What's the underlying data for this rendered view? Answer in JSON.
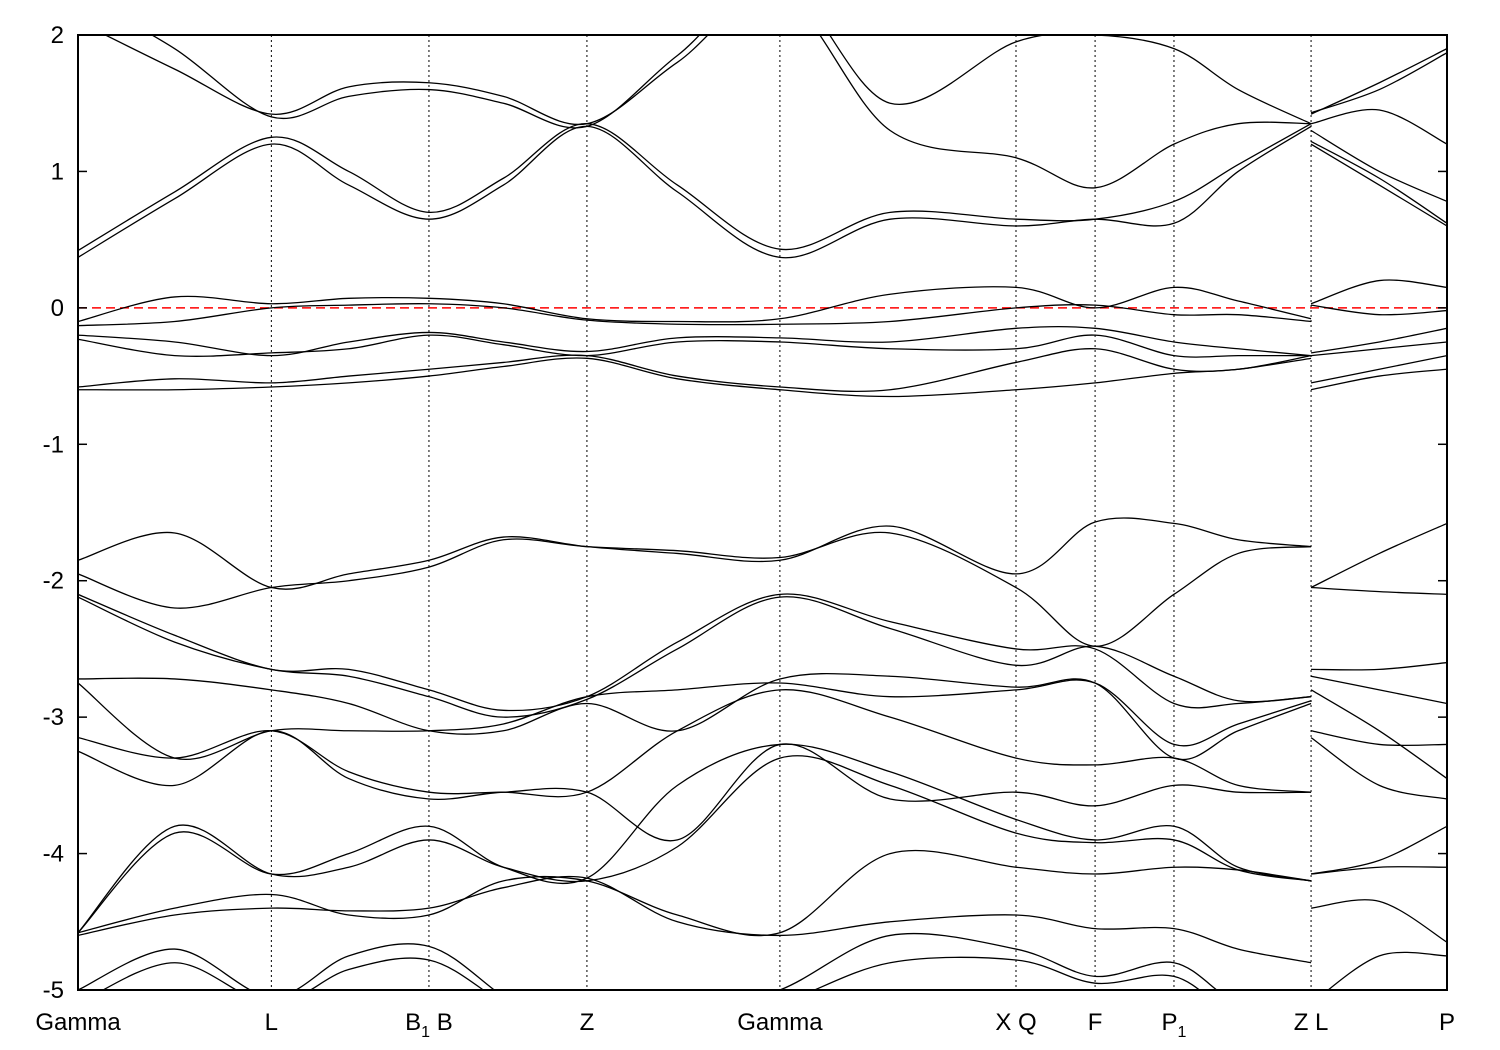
{
  "chart_data": {
    "type": "line",
    "title": "",
    "xlabel": "",
    "ylabel": "",
    "ylim": [
      -5,
      2
    ],
    "xlim": [
      0,
      7.08
    ],
    "yticks": [
      2,
      1,
      0,
      -1,
      -2,
      -3,
      -4,
      -5
    ],
    "xticks": [
      {
        "x": 0,
        "text": "Gamma",
        "sub": "",
        "suffix": ""
      },
      {
        "x": 1.0,
        "text": "L",
        "sub": "",
        "suffix": ""
      },
      {
        "x": 1.815,
        "text": "B",
        "sub": "1",
        "suffix": " B"
      },
      {
        "x": 2.632,
        "text": "Z",
        "sub": "",
        "suffix": ""
      },
      {
        "x": 3.63,
        "text": "Gamma",
        "sub": "",
        "suffix": ""
      },
      {
        "x": 4.851,
        "text": "X Q",
        "sub": "",
        "suffix": ""
      },
      {
        "x": 5.26,
        "text": "F",
        "sub": "",
        "suffix": ""
      },
      {
        "x": 5.668,
        "text": "P",
        "sub": "1",
        "suffix": ""
      },
      {
        "x": 6.377,
        "text": "Z L",
        "sub": "",
        "suffix": ""
      },
      {
        "x": 7.08,
        "text": "P",
        "sub": "",
        "suffix": ""
      }
    ],
    "fermi_level": 0,
    "colors": {
      "bands": "#000000",
      "fermi": "#ff0000",
      "grid": "#000000"
    },
    "segments": [
      {
        "x": [
          0,
          0.5,
          1.0,
          1.4,
          1.815,
          2.2,
          2.632,
          3.1,
          3.63,
          4.2,
          4.851,
          5.26,
          5.668,
          6.0,
          6.377
        ],
        "bands": [
          [
            0.37,
            0.8,
            1.2,
            0.9,
            0.65,
            0.9,
            1.33,
            0.85,
            0.37,
            0.65,
            0.6,
            0.65,
            0.62,
            1.0,
            1.33
          ],
          [
            0.42,
            0.85,
            1.25,
            1.0,
            0.7,
            0.95,
            1.35,
            0.9,
            0.43,
            0.7,
            0.65,
            0.65,
            0.78,
            1.05,
            1.35
          ],
          [
            2.1,
            1.75,
            1.42,
            1.62,
            1.65,
            1.55,
            1.35,
            1.8,
            2.3,
            1.3,
            1.1,
            0.88,
            1.2,
            1.35,
            1.35
          ],
          [
            2.3,
            1.9,
            1.4,
            1.55,
            1.6,
            1.5,
            1.33,
            1.85,
            2.4,
            1.5,
            1.95,
            2.0,
            1.9,
            1.6,
            1.35
          ],
          [
            -0.1,
            0.08,
            0.03,
            0.07,
            0.07,
            0.03,
            -0.08,
            -0.1,
            -0.08,
            0.1,
            0.15,
            0.0,
            0.15,
            0.05,
            -0.08
          ],
          [
            -0.13,
            -0.1,
            0.0,
            0.02,
            0.03,
            0.0,
            -0.09,
            -0.12,
            -0.12,
            -0.1,
            0.0,
            0.02,
            -0.05,
            -0.05,
            -0.1
          ],
          [
            -0.2,
            -0.25,
            -0.35,
            -0.25,
            -0.18,
            -0.25,
            -0.32,
            -0.22,
            -0.22,
            -0.25,
            -0.15,
            -0.15,
            -0.25,
            -0.3,
            -0.35
          ],
          [
            -0.23,
            -0.35,
            -0.33,
            -0.3,
            -0.2,
            -0.27,
            -0.35,
            -0.25,
            -0.25,
            -0.3,
            -0.3,
            -0.2,
            -0.35,
            -0.35,
            -0.35
          ],
          [
            -0.58,
            -0.52,
            -0.55,
            -0.5,
            -0.45,
            -0.4,
            -0.35,
            -0.5,
            -0.58,
            -0.6,
            -0.4,
            -0.3,
            -0.45,
            -0.45,
            -0.35
          ],
          [
            -0.6,
            -0.6,
            -0.58,
            -0.55,
            -0.5,
            -0.43,
            -0.37,
            -0.52,
            -0.6,
            -0.65,
            -0.6,
            -0.55,
            -0.48,
            -0.45,
            -0.37
          ],
          [
            -1.85,
            -1.65,
            -2.05,
            -1.95,
            -1.85,
            -1.68,
            -1.75,
            -1.8,
            -1.85,
            -1.6,
            -1.95,
            -1.57,
            -1.58,
            -1.7,
            -1.75
          ],
          [
            -1.95,
            -2.2,
            -2.05,
            -2.0,
            -1.9,
            -1.7,
            -1.75,
            -1.78,
            -1.83,
            -1.65,
            -2.05,
            -2.48,
            -2.1,
            -1.8,
            -1.75
          ],
          [
            -2.1,
            -2.4,
            -2.65,
            -2.65,
            -2.8,
            -2.95,
            -2.85,
            -2.45,
            -2.1,
            -2.3,
            -2.5,
            -2.5,
            -2.9,
            -2.9,
            -2.85
          ],
          [
            -2.12,
            -2.45,
            -2.65,
            -2.7,
            -2.85,
            -3.0,
            -2.87,
            -2.5,
            -2.12,
            -2.35,
            -2.62,
            -2.48,
            -2.7,
            -2.88,
            -2.85
          ],
          [
            -2.72,
            -2.72,
            -2.8,
            -2.9,
            -3.1,
            -3.1,
            -2.9,
            -3.1,
            -2.72,
            -2.7,
            -2.78,
            -2.75,
            -3.3,
            -3.1,
            -2.9
          ],
          [
            -2.75,
            -3.3,
            -3.1,
            -3.1,
            -3.1,
            -3.05,
            -2.85,
            -2.8,
            -2.75,
            -2.85,
            -2.8,
            -2.75,
            -3.2,
            -3.05,
            -2.88
          ],
          [
            -3.15,
            -3.3,
            -3.1,
            -3.4,
            -3.55,
            -3.55,
            -3.55,
            -3.1,
            -2.8,
            -3.0,
            -3.3,
            -3.35,
            -3.3,
            -3.5,
            -3.55
          ],
          [
            -3.25,
            -3.5,
            -3.1,
            -3.45,
            -3.6,
            -3.55,
            -3.55,
            -3.9,
            -3.2,
            -3.6,
            -3.55,
            -3.65,
            -3.5,
            -3.55,
            -3.55
          ],
          [
            -4.58,
            -3.85,
            -4.15,
            -4.0,
            -3.8,
            -4.1,
            -4.18,
            -3.5,
            -3.2,
            -3.4,
            -3.75,
            -3.9,
            -3.8,
            -4.1,
            -4.2
          ],
          [
            -4.58,
            -3.8,
            -4.15,
            -4.1,
            -3.9,
            -4.1,
            -4.2,
            -3.95,
            -3.3,
            -3.5,
            -3.85,
            -3.92,
            -3.9,
            -4.12,
            -4.2
          ],
          [
            -4.58,
            -4.4,
            -4.3,
            -4.45,
            -4.45,
            -4.2,
            -4.2,
            -4.45,
            -4.58,
            -4.0,
            -4.1,
            -4.15,
            -4.1,
            -4.12,
            -4.2
          ],
          [
            -4.6,
            -4.45,
            -4.4,
            -4.42,
            -4.4,
            -4.25,
            -4.18,
            -4.5,
            -4.6,
            -4.5,
            -4.45,
            -4.55,
            -4.55,
            -4.7,
            -4.8
          ],
          [
            -5.0,
            -4.7,
            -5.05,
            -4.75,
            -4.68,
            -5.05,
            -5.5,
            -5.2,
            -5.0,
            -4.6,
            -4.7,
            -4.9,
            -4.8,
            -5.1,
            -5.2
          ],
          [
            -5.1,
            -4.8,
            -5.1,
            -4.85,
            -4.78,
            -5.1,
            -5.5,
            -5.3,
            -5.1,
            -4.8,
            -4.78,
            -4.95,
            -4.9,
            -5.2,
            -5.3
          ]
        ]
      },
      {
        "x": [
          6.377,
          6.73,
          7.08
        ],
        "bands": [
          [
            1.42,
            1.65,
            1.9
          ],
          [
            1.43,
            1.6,
            1.87
          ],
          [
            1.35,
            1.45,
            1.2
          ],
          [
            1.22,
            0.95,
            0.62
          ],
          [
            1.3,
            1.0,
            0.78
          ],
          [
            1.2,
            0.9,
            0.6
          ],
          [
            0.03,
            0.2,
            0.15
          ],
          [
            0.02,
            -0.05,
            -0.02
          ],
          [
            -0.33,
            -0.25,
            -0.15
          ],
          [
            -0.35,
            -0.3,
            -0.25
          ],
          [
            -0.55,
            -0.45,
            -0.35
          ],
          [
            -0.6,
            -0.5,
            -0.45
          ],
          [
            -2.05,
            -1.8,
            -1.58
          ],
          [
            -2.05,
            -2.08,
            -2.1
          ],
          [
            -2.65,
            -2.65,
            -2.6
          ],
          [
            -2.7,
            -2.8,
            -2.9
          ],
          [
            -2.8,
            -3.1,
            -3.45
          ],
          [
            -3.1,
            -3.2,
            -3.2
          ],
          [
            -3.15,
            -3.5,
            -3.6
          ],
          [
            -4.15,
            -4.05,
            -3.8
          ],
          [
            -4.15,
            -4.1,
            -4.1
          ],
          [
            -4.4,
            -4.35,
            -4.65
          ],
          [
            -5.1,
            -4.75,
            -4.75
          ]
        ]
      }
    ]
  }
}
